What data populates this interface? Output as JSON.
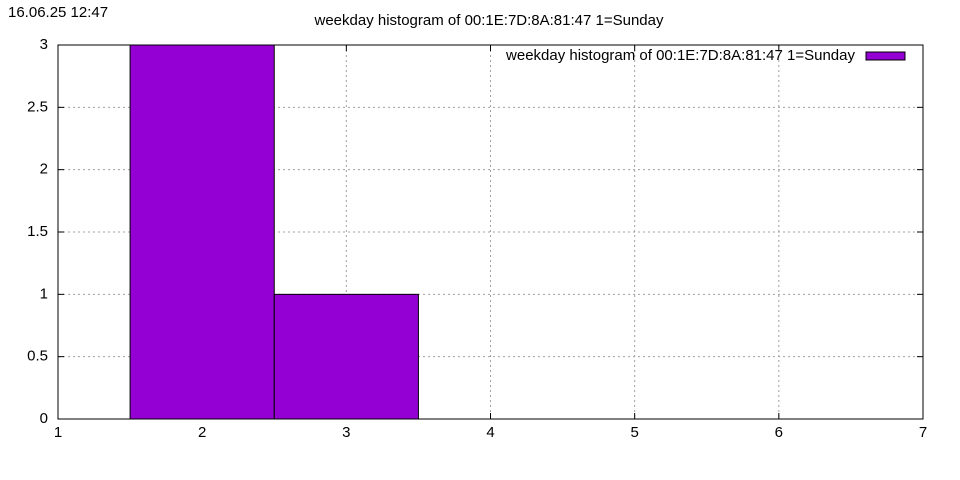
{
  "timestamp": "16.06.25 12:47",
  "chart_data": {
    "type": "histogram",
    "title": "weekday histogram of 00:1E:7D:8A:81:47 1=Sunday",
    "bins": [
      1.5,
      2.5,
      3.5
    ],
    "series": [
      {
        "name": "weekday histogram of 00:1E:7D:8A:81:47 1=Sunday",
        "color": "#9400d3",
        "values": [
          3,
          1
        ]
      }
    ],
    "xlim": [
      1,
      7
    ],
    "xticks": [
      1,
      2,
      3,
      4,
      5,
      6,
      7
    ],
    "ylim": [
      0,
      3
    ],
    "yticks": [
      0,
      0.5,
      1,
      1.5,
      2,
      2.5,
      3
    ],
    "grid": true,
    "legend": "top-right"
  }
}
